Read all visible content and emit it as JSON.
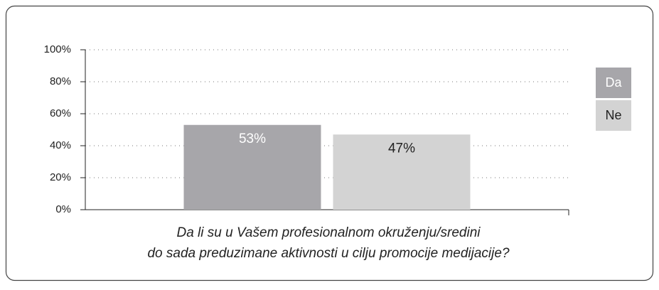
{
  "chart_data": {
    "type": "bar",
    "categories": [
      null
    ],
    "series": [
      {
        "name": "Da",
        "color": "#a7a6aa",
        "values": [
          53
        ],
        "value_labels": [
          "53%"
        ]
      },
      {
        "name": "Ne",
        "color": "#d3d3d3",
        "values": [
          47
        ],
        "value_labels": [
          "47%"
        ]
      }
    ],
    "x_label": [
      "Da li su u Vašem profesionalnom okruženju/sredini",
      "do sada preduzimane aktivnosti u cilju promocije medijacije?"
    ],
    "ylim": [
      0,
      100
    ],
    "yticks": [
      {
        "value": 0,
        "label": "0%"
      },
      {
        "value": 20,
        "label": "20%"
      },
      {
        "value": 40,
        "label": "40%"
      },
      {
        "value": 60,
        "label": "60%"
      },
      {
        "value": 80,
        "label": "80%"
      },
      {
        "value": 100,
        "label": "100%"
      }
    ],
    "grid": true,
    "legend": "right"
  }
}
